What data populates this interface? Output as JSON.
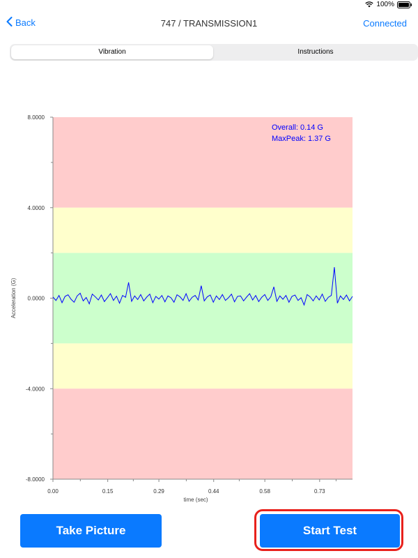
{
  "status": {
    "battery": "100%"
  },
  "nav": {
    "back_label": "Back",
    "title": "747 / TRANSMISSION1",
    "connected_label": "Connected"
  },
  "tabs": [
    {
      "label": "Vibration",
      "active": true
    },
    {
      "label": "Instructions",
      "active": false
    }
  ],
  "chart_data": {
    "type": "line",
    "title": "",
    "xlabel": "time (sec)",
    "ylabel": "Acceleration (G)",
    "xlim": [
      0,
      0.82
    ],
    "ylim": [
      -8,
      8
    ],
    "x_ticks": [
      "0.00",
      "0.15",
      "0.29",
      "0.44",
      "0.58",
      "0.73"
    ],
    "x_tick_values": [
      0.0,
      0.15,
      0.29,
      0.44,
      0.58,
      0.73
    ],
    "y_ticks": [
      "8.0000",
      "4.0000",
      "0.0000",
      "-4.0000",
      "-8.0000"
    ],
    "y_tick_values": [
      8,
      4,
      0,
      -4,
      -8
    ],
    "bands": [
      {
        "from": 4,
        "to": 8,
        "color": "#ffcccc"
      },
      {
        "from": 2,
        "to": 4,
        "color": "#ffffcc"
      },
      {
        "from": -2,
        "to": 2,
        "color": "#ccffcc"
      },
      {
        "from": -4,
        "to": -2,
        "color": "#ffffcc"
      },
      {
        "from": -8,
        "to": -4,
        "color": "#ffcccc"
      }
    ],
    "series_color": "#0000ff",
    "annotations": [
      "Overall: 0.14 G",
      "MaxPeak: 1.37 G"
    ],
    "series": [
      {
        "values": [
          0.05,
          -0.1,
          0.12,
          -0.2,
          0.08,
          0.15,
          -0.05,
          -0.18,
          0.1,
          0.22,
          -0.12,
          0.03,
          -0.25,
          0.18,
          0.06,
          -0.08,
          0.14,
          -0.15,
          0.02,
          0.2,
          -0.1,
          0.09,
          -0.22,
          0.12,
          0.04,
          0.7,
          -0.14,
          0.1,
          -0.06,
          0.16,
          -0.12,
          0.05,
          0.18,
          -0.2,
          0.08,
          -0.04,
          0.12,
          -0.16,
          0.1,
          0.02,
          -0.18,
          0.15,
          0.06,
          -0.1,
          0.2,
          -0.14,
          0.04,
          0.12,
          -0.08,
          0.55,
          -0.12,
          0.06,
          0.14,
          -0.18,
          0.1,
          -0.06,
          0.16,
          -0.1,
          0.02,
          0.18,
          -0.16,
          0.08,
          0.1,
          -0.12,
          0.05,
          0.2,
          -0.08,
          0.12,
          -0.15,
          0.04,
          0.16,
          -0.1,
          0.06,
          0.5,
          -0.14,
          0.1,
          -0.05,
          0.12,
          -0.18,
          0.08,
          0.14,
          -0.1,
          0.02,
          -0.3,
          0.16,
          0.06,
          -0.12,
          0.1,
          -0.08,
          0.18,
          -0.14,
          0.04,
          0.12,
          1.37,
          -0.22,
          0.1,
          -0.06,
          0.14,
          -0.12,
          0.08
        ]
      }
    ]
  },
  "buttons": {
    "take_picture": "Take Picture",
    "start_test": "Start Test"
  }
}
